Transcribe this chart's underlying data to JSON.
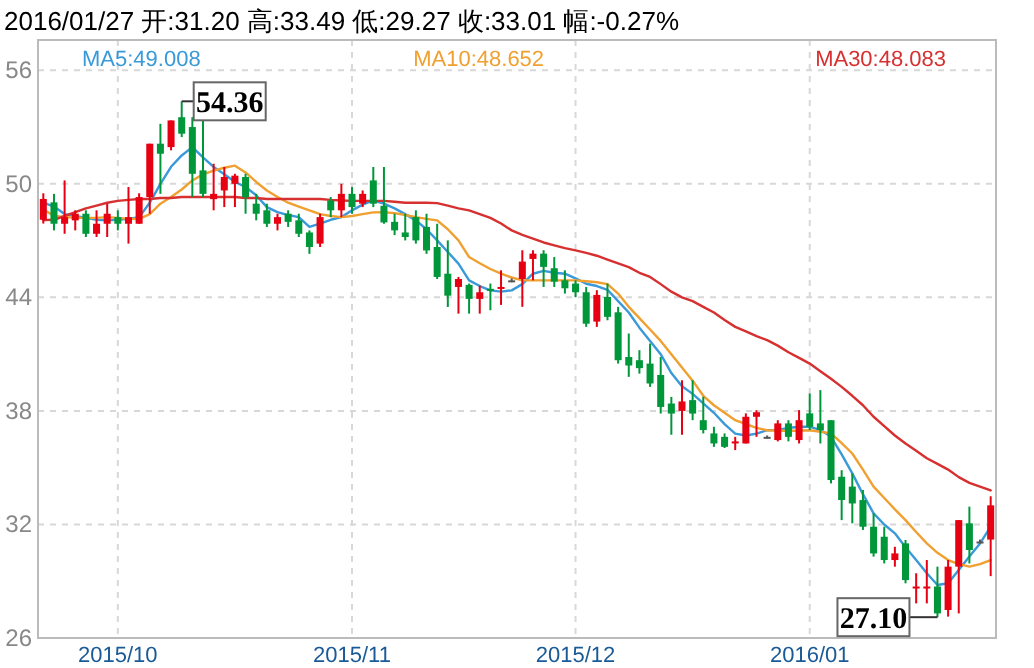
{
  "chart_data": {
    "type": "candlestick",
    "title": "2016/01/27  开:31.20  高:33.49  低:29.27  收:33.01  幅:-0.27%",
    "categories": [
      null,
      null,
      null,
      null,
      null,
      null,
      null,
      "2015/10",
      null,
      null,
      null,
      null,
      null,
      null,
      null,
      null,
      null,
      null,
      null,
      null,
      null,
      null,
      null,
      null,
      null,
      null,
      null,
      null,
      null,
      "2015/11",
      null,
      null,
      null,
      null,
      null,
      null,
      null,
      null,
      null,
      null,
      null,
      null,
      null,
      null,
      null,
      null,
      null,
      null,
      null,
      null,
      "2015/12",
      null,
      null,
      null,
      null,
      null,
      null,
      null,
      null,
      null,
      null,
      null,
      null,
      null,
      null,
      null,
      null,
      null,
      null,
      null,
      null,
      null,
      "2016/01",
      null,
      null,
      null,
      null,
      null,
      null,
      null,
      null,
      null,
      null,
      null,
      null,
      null,
      null,
      null,
      null,
      null
    ],
    "ohlc": [
      [
        48.1,
        49.5,
        47.9,
        49.2
      ],
      [
        49.02,
        49.47,
        47.54,
        47.89
      ],
      [
        47.89,
        50.18,
        47.36,
        48.24
      ],
      [
        48.07,
        48.6,
        47.54,
        48.42
      ],
      [
        48.42,
        48.6,
        47.19,
        47.36
      ],
      [
        47.36,
        48.6,
        47.19,
        47.89
      ],
      [
        47.89,
        48.95,
        47.19,
        48.42
      ],
      [
        48.24,
        48.6,
        47.54,
        47.89
      ],
      [
        47.89,
        49.83,
        46.84,
        48.24
      ],
      [
        47.89,
        49.5,
        47.89,
        49.3
      ],
      [
        49.3,
        52.12,
        48.42,
        52.12
      ],
      [
        52.12,
        53.17,
        49.47,
        51.59
      ],
      [
        51.94,
        53.35,
        51.77,
        53.35
      ],
      [
        53.52,
        54.36,
        52.47,
        52.65
      ],
      [
        53.0,
        53.52,
        49.3,
        50.53
      ],
      [
        50.71,
        53.52,
        49.3,
        49.47
      ],
      [
        49.19,
        51.06,
        48.6,
        49.47
      ],
      [
        49.65,
        50.89,
        48.77,
        50.36
      ],
      [
        50.0,
        50.53,
        48.77,
        50.43
      ],
      [
        50.36,
        50.53,
        48.42,
        49.3
      ],
      [
        48.95,
        49.47,
        48.07,
        48.42
      ],
      [
        48.6,
        48.95,
        47.72,
        47.89
      ],
      [
        47.89,
        48.42,
        47.54,
        48.24
      ],
      [
        48.42,
        48.6,
        47.72,
        47.99
      ],
      [
        48.07,
        48.42,
        47.19,
        47.36
      ],
      [
        47.43,
        47.54,
        46.3,
        46.66
      ],
      [
        46.84,
        48.42,
        46.66,
        48.24
      ],
      [
        49.12,
        49.3,
        48.24,
        48.6
      ],
      [
        48.6,
        50.0,
        48.24,
        49.47
      ],
      [
        49.47,
        49.83,
        48.42,
        48.77
      ],
      [
        48.95,
        49.65,
        48.77,
        49.47
      ],
      [
        50.18,
        50.89,
        48.77,
        48.95
      ],
      [
        48.84,
        50.89,
        47.89,
        47.96
      ],
      [
        47.99,
        48.42,
        47.29,
        47.54
      ],
      [
        47.43,
        48.42,
        47.01,
        47.19
      ],
      [
        48.24,
        48.6,
        46.84,
        47.01
      ],
      [
        47.72,
        48.42,
        46.3,
        46.48
      ],
      [
        46.66,
        47.89,
        44.97,
        45.08
      ],
      [
        45.25,
        47.01,
        43.49,
        44.09
      ],
      [
        44.55,
        45.08,
        43.14,
        44.97
      ],
      [
        44.66,
        44.73,
        43.14,
        43.92
      ],
      [
        43.92,
        44.62,
        43.14,
        44.27
      ],
      [
        44.45,
        44.73,
        43.32,
        44.34
      ],
      [
        44.45,
        45.43,
        43.6,
        44.55
      ],
      [
        44.9,
        45.0,
        44.8,
        44.9
      ],
      [
        44.97,
        46.49,
        43.5,
        45.89
      ],
      [
        46.03,
        46.49,
        44.9,
        46.31
      ],
      [
        46.31,
        46.49,
        44.55,
        45.61
      ],
      [
        45.54,
        46.13,
        44.55,
        44.83
      ],
      [
        44.9,
        45.43,
        44.2,
        44.48
      ],
      [
        44.73,
        44.9,
        44.02,
        44.27
      ],
      [
        44.27,
        44.55,
        42.44,
        42.61
      ],
      [
        42.72,
        44.38,
        42.44,
        44.13
      ],
      [
        44.02,
        44.73,
        42.79,
        42.97
      ],
      [
        43.21,
        43.5,
        40.5,
        40.68
      ],
      [
        40.85,
        42.09,
        39.8,
        40.4
      ],
      [
        40.68,
        41.21,
        39.97,
        40.26
      ],
      [
        40.5,
        41.56,
        39.27,
        39.45
      ],
      [
        39.9,
        40.85,
        37.86,
        38.21
      ],
      [
        38.39,
        38.74,
        36.74,
        37.86
      ],
      [
        38.0,
        39.62,
        36.74,
        38.5
      ],
      [
        38.57,
        39.62,
        37.51,
        37.86
      ],
      [
        37.51,
        38.75,
        36.81,
        36.99
      ],
      [
        36.81,
        37.16,
        36.1,
        36.28
      ],
      [
        36.63,
        36.81,
        36.04,
        36.1
      ],
      [
        36.28,
        36.63,
        35.93,
        36.39
      ],
      [
        36.28,
        37.87,
        36.28,
        37.69
      ],
      [
        37.69,
        38.04,
        36.63,
        37.93
      ],
      [
        36.63,
        36.7,
        36.55,
        36.63
      ],
      [
        36.46,
        37.51,
        36.39,
        37.34
      ],
      [
        37.34,
        37.51,
        36.39,
        36.63
      ],
      [
        36.46,
        38.04,
        36.28,
        37.51
      ],
      [
        37.87,
        38.92,
        36.99,
        37.16
      ],
      [
        37.34,
        39.1,
        36.28,
        36.99
      ],
      [
        37.51,
        37.51,
        34.17,
        34.35
      ],
      [
        34.52,
        34.87,
        32.23,
        33.29
      ],
      [
        34.0,
        34.7,
        32.06,
        33.11
      ],
      [
        33.29,
        33.82,
        31.71,
        31.88
      ],
      [
        31.88,
        32.59,
        30.3,
        30.47
      ],
      [
        31.35,
        31.88,
        29.94,
        30.12
      ],
      [
        30.12,
        30.82,
        29.77,
        30.47
      ],
      [
        31.0,
        31.18,
        28.89,
        29.06
      ],
      [
        28.65,
        29.42,
        27.83,
        28.72
      ],
      [
        28.65,
        30.12,
        27.83,
        28.72
      ],
      [
        28.72,
        29.77,
        27.1,
        27.3
      ],
      [
        27.48,
        30.12,
        27.13,
        29.77
      ],
      [
        29.77,
        32.23,
        27.3,
        32.23
      ],
      [
        32.06,
        32.94,
        29.94,
        30.65
      ],
      [
        31.1,
        31.2,
        31.0,
        31.1
      ],
      [
        31.2,
        33.49,
        29.27,
        33.01
      ]
    ],
    "colors": [
      "#e60012",
      "#00973a",
      "#e60012",
      "#e60012",
      "#00973a",
      "#e60012",
      "#e60012",
      "#00973a",
      "#e60012",
      "#e60012",
      "#e60012",
      "#00973a",
      "#e60012",
      "#00973a",
      "#00973a",
      "#00973a",
      "#e60012",
      "#e60012",
      "#e60012",
      "#00973a",
      "#00973a",
      "#00973a",
      "#e60012",
      "#00973a",
      "#00973a",
      "#00973a",
      "#e60012",
      "#00973a",
      "#e60012",
      "#00973a",
      "#e60012",
      "#00973a",
      "#00973a",
      "#00973a",
      "#00973a",
      "#00973a",
      "#00973a",
      "#00973a",
      "#00973a",
      "#e60012",
      "#00973a",
      "#e60012",
      "#00973a",
      "#e60012",
      "#555555",
      "#e60012",
      "#e60012",
      "#00973a",
      "#00973a",
      "#00973a",
      "#00973a",
      "#00973a",
      "#e60012",
      "#00973a",
      "#00973a",
      "#00973a",
      "#00973a",
      "#00973a",
      "#00973a",
      "#00973a",
      "#e60012",
      "#00973a",
      "#00973a",
      "#00973a",
      "#00973a",
      "#e60012",
      "#e60012",
      "#e60012",
      "#555555",
      "#e60012",
      "#00973a",
      "#e60012",
      "#00973a",
      "#00973a",
      "#00973a",
      "#00973a",
      "#00973a",
      "#00973a",
      "#00973a",
      "#00973a",
      "#e60012",
      "#00973a",
      "#e60012",
      "#e60012",
      "#00973a",
      "#e60012",
      "#e60012",
      "#00973a",
      "#555555",
      "#e60012"
    ],
    "series": [
      {
        "type": "line",
        "name": "MA5:49.008",
        "color": "#3a9ad9",
        "values": [
          49.0,
          48.8,
          48.4,
          48.3,
          48.2,
          48.1,
          48.07,
          48.1,
          48.15,
          48.24,
          49.0,
          50.0,
          50.9,
          51.5,
          51.94,
          51.4,
          50.89,
          50.5,
          50.1,
          49.83,
          49.4,
          48.77,
          48.5,
          48.35,
          48.24,
          47.72,
          47.9,
          48.1,
          48.24,
          48.6,
          48.9,
          49.12,
          48.95,
          48.7,
          48.4,
          48.07,
          47.6,
          47.01,
          46.4,
          45.78,
          44.9,
          44.6,
          44.37,
          44.3,
          44.37,
          44.7,
          45.25,
          45.4,
          45.3,
          45.25,
          45.0,
          44.72,
          44.6,
          44.4,
          43.8,
          43.2,
          42.4,
          41.7,
          41.0,
          40.0,
          39.3,
          38.9,
          38.4,
          37.9,
          37.3,
          36.8,
          36.7,
          36.8,
          36.98,
          37.0,
          37.1,
          37.16,
          37.16,
          37.0,
          36.63,
          35.7,
          34.7,
          33.6,
          32.59,
          32.0,
          31.53,
          30.8,
          30.12,
          29.42,
          28.8,
          28.89,
          29.6,
          30.3,
          31.0,
          31.88
        ]
      },
      {
        "type": "line",
        "name": "MA10:48.652",
        "color": "#f0a030",
        "values": [
          48.65,
          48.3,
          48.25,
          48.2,
          48.2,
          48.2,
          48.24,
          48.2,
          48.15,
          48.14,
          48.4,
          48.95,
          49.3,
          49.7,
          50.18,
          50.5,
          50.7,
          50.85,
          50.96,
          50.6,
          50.1,
          49.65,
          49.3,
          49.0,
          48.8,
          48.6,
          48.4,
          48.3,
          48.24,
          48.3,
          48.4,
          48.49,
          48.5,
          48.45,
          48.35,
          48.24,
          48.15,
          48.07,
          47.6,
          47.01,
          46.13,
          45.8,
          45.5,
          45.25,
          45.05,
          44.9,
          44.9,
          44.9,
          44.9,
          44.9,
          44.9,
          44.85,
          44.8,
          44.7,
          44.2,
          43.5,
          42.9,
          42.3,
          41.7,
          41.0,
          40.3,
          39.6,
          38.8,
          38.3,
          37.9,
          37.51,
          37.3,
          37.1,
          36.98,
          36.95,
          36.95,
          36.95,
          36.98,
          36.9,
          36.81,
          36.3,
          35.75,
          34.9,
          34.0,
          33.4,
          32.8,
          32.23,
          31.6,
          31.0,
          30.5,
          30.12,
          29.9,
          29.77,
          29.9,
          30.12
        ]
      },
      {
        "type": "line",
        "name": "MA30:48.083",
        "color": "#d63030",
        "values": [
          48.08,
          48.1,
          48.3,
          48.5,
          48.7,
          48.85,
          49.0,
          49.1,
          49.15,
          49.2,
          49.2,
          49.25,
          49.25,
          49.3,
          49.3,
          49.3,
          49.3,
          49.3,
          49.3,
          49.25,
          49.25,
          49.2,
          49.2,
          49.2,
          49.2,
          49.2,
          49.2,
          49.15,
          49.12,
          49.1,
          49.1,
          49.1,
          49.1,
          49.05,
          49.0,
          49.0,
          49.0,
          48.98,
          48.85,
          48.7,
          48.6,
          48.4,
          48.2,
          47.9,
          47.54,
          47.3,
          47.1,
          46.9,
          46.75,
          46.6,
          46.48,
          46.35,
          46.2,
          46.0,
          45.8,
          45.6,
          45.3,
          45.08,
          44.7,
          44.3,
          44.0,
          43.8,
          43.5,
          43.2,
          42.8,
          42.44,
          42.2,
          41.95,
          41.74,
          41.45,
          41.1,
          40.8,
          40.5,
          40.1,
          39.7,
          39.27,
          38.8,
          38.3,
          37.69,
          37.2,
          36.7,
          36.28,
          35.9,
          35.5,
          35.2,
          34.9,
          34.5,
          34.2,
          34.0,
          33.8
        ]
      }
    ],
    "ylim": [
      26,
      57.6
    ],
    "yticks": [
      26,
      32,
      38,
      44,
      50,
      56
    ],
    "grid": true,
    "legend": "top",
    "annotations": [
      {
        "text": "54.36",
        "y": 54.36
      },
      {
        "text": "27.10",
        "y": 27.1
      }
    ]
  }
}
